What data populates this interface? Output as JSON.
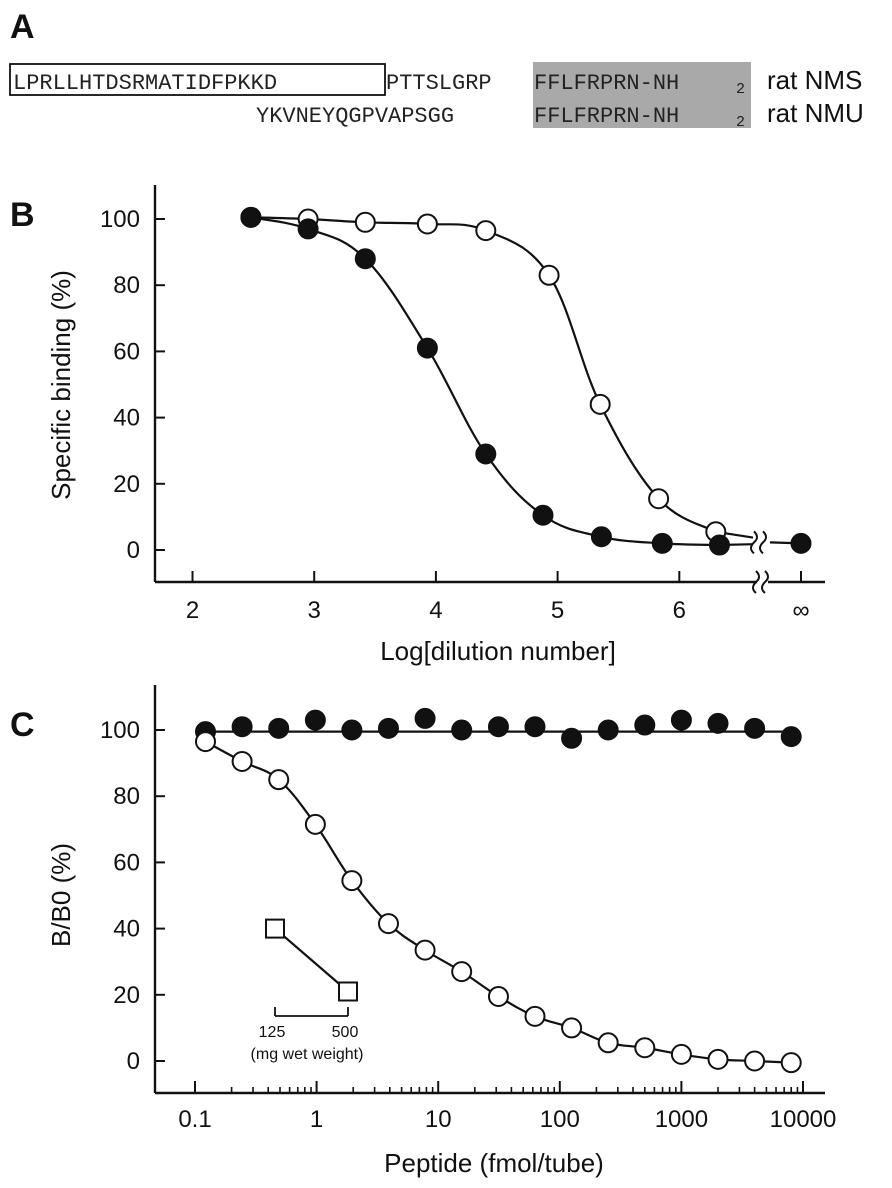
{
  "panel_a": {
    "label": "A",
    "rows": [
      {
        "boxed": "LPRLLHTDSRMATIDFPKKD",
        "plain": "PTTSLGRP",
        "shaded": "FFLFRPRN-NH",
        "subscript": "2",
        "name": "rat NMS"
      },
      {
        "boxed": "",
        "plain": "YKVNEYQGPVAPSGG",
        "shaded": "FFLFRPRN-NH",
        "subscript": "2",
        "name": "rat NMU"
      }
    ]
  },
  "chart_data": [
    {
      "panel": "B",
      "type": "line",
      "title": "",
      "xlabel": "Log[dilution number]",
      "ylabel": "Specific binding (%)",
      "xlim": [
        1.7,
        6.8
      ],
      "ylim": [
        -10,
        112
      ],
      "x_ticks": [
        "2",
        "3",
        "4",
        "5",
        "6",
        "∞"
      ],
      "y_ticks": [
        "0",
        "20",
        "40",
        "60",
        "80",
        "100"
      ],
      "axis_break": true,
      "series": [
        {
          "name": "open circles",
          "marker": "open-circle",
          "x": [
            2.48,
            2.95,
            3.42,
            3.93,
            4.41,
            4.93,
            5.35,
            5.83,
            6.3
          ],
          "y": [
            100.5,
            100,
            99,
            98.5,
            96.5,
            83,
            44,
            15.5,
            5.5
          ]
        },
        {
          "name": "filled circles",
          "marker": "filled-circle",
          "x": [
            2.48,
            2.95,
            3.42,
            3.93,
            4.41,
            4.88,
            5.36,
            5.86,
            6.33
          ],
          "y": [
            100.5,
            97,
            88,
            61,
            29,
            10.5,
            4,
            2,
            1.5
          ]
        }
      ],
      "infinity_points": [
        {
          "marker": "filled-circle",
          "y": 2
        }
      ]
    },
    {
      "panel": "C",
      "type": "line",
      "title": "",
      "xlabel": "Peptide (fmol/tube)",
      "ylabel": "B/B0 (%)",
      "xscale": "log",
      "xlim": [
        0.05,
        17000
      ],
      "ylim": [
        -10,
        112
      ],
      "x_ticks": [
        "0.1",
        "1",
        "10",
        "100",
        "1000",
        "10000"
      ],
      "y_ticks": [
        "0",
        "20",
        "40",
        "60",
        "80",
        "100"
      ],
      "series": [
        {
          "name": "filled circles",
          "marker": "filled-circle",
          "x": [
            0.122,
            0.244,
            0.488,
            0.977,
            1.95,
            3.9,
            7.8,
            15.6,
            31.3,
            62.5,
            125,
            250,
            500,
            1000,
            2000,
            4000,
            8000
          ],
          "y": [
            99.5,
            101,
            100.5,
            103,
            100,
            100.5,
            103.5,
            100,
            101,
            101,
            97.5,
            100,
            101.5,
            103,
            102,
            100.5,
            98
          ],
          "fit": {
            "x": [
              0.122,
              8000
            ],
            "y": [
              99.5,
              99.5
            ]
          }
        },
        {
          "name": "open circles",
          "marker": "open-circle",
          "x": [
            0.122,
            0.244,
            0.488,
            0.977,
            1.95,
            3.9,
            7.8,
            15.6,
            31.3,
            62.5,
            125,
            250,
            500,
            1000,
            2000,
            4000,
            8000
          ],
          "y": [
            96.5,
            90.5,
            85,
            71.5,
            54.5,
            41.5,
            33.5,
            27,
            19.5,
            13.5,
            10,
            5.5,
            4,
            2,
            0.5,
            0,
            -0.5
          ]
        }
      ],
      "inset": {
        "marker": "open-square",
        "points": [
          {
            "x_label": "125",
            "y": 40
          },
          {
            "x_label": "500",
            "y": 21
          }
        ],
        "x_unit": "(mg wet weight)"
      }
    }
  ],
  "panel_labels": {
    "b": "B",
    "c": "C"
  }
}
